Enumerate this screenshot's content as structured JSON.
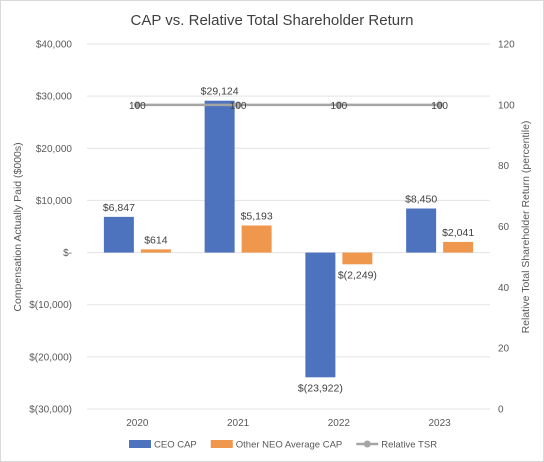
{
  "chart_data": {
    "type": "bar",
    "title": "CAP vs. Relative Total Shareholder Return",
    "categories": [
      "2020",
      "2021",
      "2022",
      "2023"
    ],
    "series": [
      {
        "name": "CEO CAP",
        "values": [
          6847,
          29124,
          -23922,
          8450
        ],
        "labels": [
          "$6,847",
          "$29,124",
          "$(23,922)",
          "$8,450"
        ],
        "color": "#4e73be",
        "axis": "left"
      },
      {
        "name": "Other NEO Average CAP",
        "values": [
          614,
          5193,
          -2249,
          2041
        ],
        "labels": [
          "$614",
          "$5,193",
          "$(2,249)",
          "$2,041"
        ],
        "color": "#f0974e",
        "axis": "left"
      },
      {
        "name": "Relative TSR",
        "type": "line",
        "values": [
          100,
          100,
          100,
          100
        ],
        "labels": [
          "100",
          "100",
          "100",
          "100"
        ],
        "color": "#a5a5a5",
        "axis": "right"
      }
    ],
    "ylabel": "Compensation Actually Paid ($000s)",
    "y2label": "Relative Total Shareholder Return (percentile)",
    "ylim": [
      -30000,
      40000
    ],
    "y2lim": [
      0,
      120
    ],
    "yticks": [
      "$40,000",
      "$30,000",
      "$20,000",
      "$10,000",
      "$-",
      "$(10,000)",
      "$(20,000)",
      "$(30,000)"
    ],
    "y2ticks": [
      "120",
      "100",
      "80",
      "60",
      "40",
      "20",
      "0"
    ],
    "grid": true,
    "legend_position": "bottom"
  }
}
